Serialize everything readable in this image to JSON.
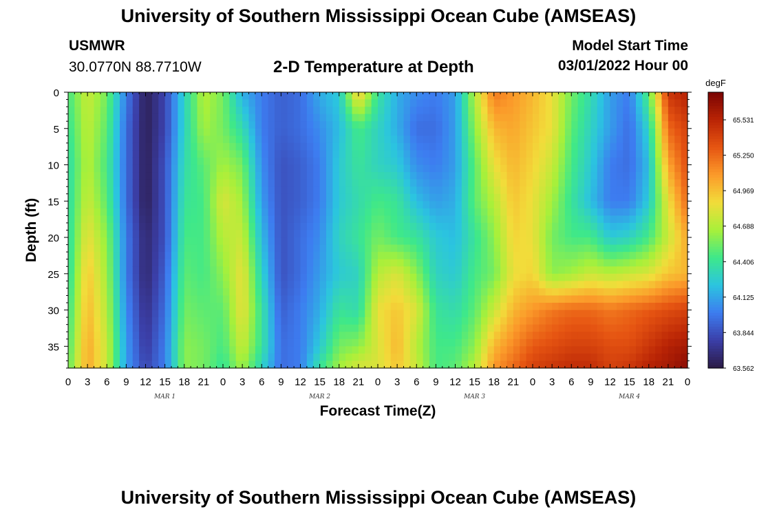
{
  "header": {
    "title": "University of Southern Mississippi Ocean Cube (AMSEAS)",
    "station": "USMWR",
    "coordinates": "30.0770N  88.7710W",
    "subtitle": "2-D Temperature at Depth",
    "model_start_label": "Model Start Time",
    "model_start_value": "03/01/2022 Hour 00"
  },
  "footer": {
    "title": "University of Southern Mississippi Ocean Cube (AMSEAS)"
  },
  "chart_data": {
    "type": "heatmap",
    "title": "2-D Temperature at Depth",
    "xlabel": "Forecast Time(Z)",
    "ylabel": "Depth (ft)",
    "x_tick_labels": [
      "0",
      "3",
      "6",
      "9",
      "12",
      "15",
      "18",
      "21",
      "0",
      "3",
      "6",
      "9",
      "12",
      "15",
      "18",
      "21",
      "0",
      "3",
      "6",
      "9",
      "12",
      "15",
      "18",
      "21",
      "0",
      "3",
      "6",
      "9",
      "12",
      "15",
      "18",
      "21",
      "0"
    ],
    "x_day_labels": [
      {
        "label": "MAR 1",
        "hour": 15
      },
      {
        "label": "MAR 2",
        "hour": 39
      },
      {
        "label": "MAR 3",
        "hour": 63
      },
      {
        "label": "MAR 4",
        "hour": 87
      }
    ],
    "xlim": [
      0,
      96
    ],
    "y_ticks": [
      0,
      5,
      10,
      15,
      20,
      25,
      30,
      35
    ],
    "ylim": [
      0,
      38
    ],
    "y_inverted": true,
    "colorbar": {
      "unit": "degF",
      "ticks": [
        "65.531",
        "65.250",
        "64.969",
        "64.688",
        "64.406",
        "64.125",
        "63.844",
        "63.562"
      ],
      "range": [
        63.562,
        65.75
      ],
      "colors": [
        "#2b1a45",
        "#3b3fa8",
        "#3d7cf0",
        "#2bc4e0",
        "#3ee88a",
        "#a8f03a",
        "#f2dc3a",
        "#fb9a2a",
        "#e65512",
        "#b92405",
        "#7a0403"
      ]
    },
    "grid_x": [
      0,
      3,
      6,
      9,
      12,
      15,
      18,
      21,
      24,
      27,
      30,
      33,
      36,
      39,
      42,
      45,
      48,
      51,
      54,
      57,
      60,
      63,
      66,
      69,
      72,
      75,
      78,
      81,
      84,
      87,
      90,
      93,
      96
    ],
    "grid_y": [
      0,
      5,
      10,
      15,
      20,
      25,
      30,
      35,
      38
    ],
    "values": [
      [
        64.45,
        64.4,
        64.35,
        64.35,
        64.35,
        64.35,
        64.4,
        64.45,
        64.5
      ],
      [
        64.75,
        64.72,
        64.7,
        64.75,
        64.85,
        64.95,
        65.0,
        65.05,
        65.05
      ],
      [
        64.55,
        64.5,
        64.45,
        64.5,
        64.6,
        64.65,
        64.7,
        64.75,
        64.75
      ],
      [
        64.0,
        63.95,
        63.95,
        63.95,
        64.0,
        64.0,
        64.05,
        64.1,
        64.1
      ],
      [
        63.6,
        63.6,
        63.6,
        63.6,
        63.65,
        63.65,
        63.7,
        63.75,
        63.8
      ],
      [
        63.8,
        63.8,
        63.85,
        63.85,
        63.85,
        63.9,
        63.95,
        64.0,
        64.0
      ],
      [
        64.3,
        64.3,
        64.35,
        64.4,
        64.45,
        64.5,
        64.55,
        64.6,
        64.6
      ],
      [
        64.7,
        64.65,
        64.5,
        64.45,
        64.45,
        64.45,
        64.5,
        64.55,
        64.55
      ],
      [
        64.55,
        64.55,
        64.65,
        64.8,
        64.7,
        64.6,
        64.5,
        64.45,
        64.4
      ],
      [
        64.15,
        64.35,
        64.55,
        64.65,
        64.75,
        64.85,
        64.85,
        64.75,
        64.65
      ],
      [
        64.0,
        64.0,
        64.05,
        64.1,
        64.2,
        64.3,
        64.4,
        64.4,
        64.3
      ],
      [
        63.9,
        63.9,
        63.85,
        63.85,
        63.85,
        63.85,
        63.9,
        63.95,
        63.95
      ],
      [
        63.95,
        63.95,
        63.9,
        63.9,
        63.95,
        63.95,
        64.0,
        64.0,
        64.0
      ],
      [
        64.15,
        64.05,
        64.0,
        64.0,
        64.05,
        64.1,
        64.15,
        64.25,
        64.4
      ],
      [
        64.25,
        64.2,
        64.25,
        64.25,
        64.3,
        64.25,
        64.4,
        64.55,
        64.65
      ],
      [
        64.95,
        64.45,
        64.4,
        64.35,
        64.4,
        64.3,
        64.35,
        64.6,
        64.8
      ],
      [
        64.4,
        64.3,
        64.3,
        64.45,
        64.55,
        64.7,
        64.85,
        64.8,
        64.8
      ],
      [
        64.15,
        64.15,
        64.25,
        64.4,
        64.45,
        64.8,
        64.95,
        65.0,
        64.95
      ],
      [
        64.05,
        63.95,
        64.05,
        64.2,
        64.4,
        64.6,
        64.8,
        64.7,
        64.75
      ],
      [
        64.0,
        63.95,
        64.0,
        64.1,
        64.25,
        64.3,
        64.4,
        64.45,
        64.45
      ],
      [
        64.1,
        64.1,
        64.1,
        64.15,
        64.2,
        64.25,
        64.35,
        64.45,
        64.5
      ],
      [
        64.7,
        64.6,
        64.5,
        64.5,
        64.4,
        64.45,
        64.5,
        64.6,
        64.7
      ],
      [
        65.2,
        65.0,
        64.85,
        64.7,
        64.6,
        64.55,
        64.75,
        65.0,
        65.1
      ],
      [
        65.1,
        65.05,
        65.0,
        64.95,
        64.9,
        64.85,
        65.0,
        65.15,
        65.25
      ],
      [
        65.0,
        64.95,
        64.9,
        64.85,
        64.85,
        64.9,
        65.1,
        65.3,
        65.4
      ],
      [
        64.85,
        64.85,
        64.75,
        64.65,
        64.55,
        64.6,
        65.2,
        65.35,
        65.45
      ],
      [
        64.55,
        64.5,
        64.45,
        64.4,
        64.45,
        64.65,
        65.25,
        65.4,
        65.5
      ],
      [
        64.35,
        64.3,
        64.25,
        64.2,
        64.45,
        64.75,
        65.25,
        65.4,
        65.5
      ],
      [
        64.1,
        64.1,
        64.0,
        64.0,
        64.25,
        64.7,
        65.2,
        65.35,
        65.4
      ],
      [
        64.0,
        63.95,
        63.95,
        64.0,
        64.3,
        64.75,
        65.25,
        65.35,
        65.45
      ],
      [
        64.5,
        64.3,
        64.2,
        64.25,
        64.45,
        64.8,
        65.3,
        65.45,
        65.55
      ],
      [
        65.45,
        65.25,
        65.05,
        64.85,
        64.75,
        64.95,
        65.35,
        65.55,
        65.6
      ],
      [
        65.55,
        65.4,
        65.35,
        65.25,
        65.05,
        65.0,
        65.4,
        65.6,
        65.7
      ]
    ]
  }
}
